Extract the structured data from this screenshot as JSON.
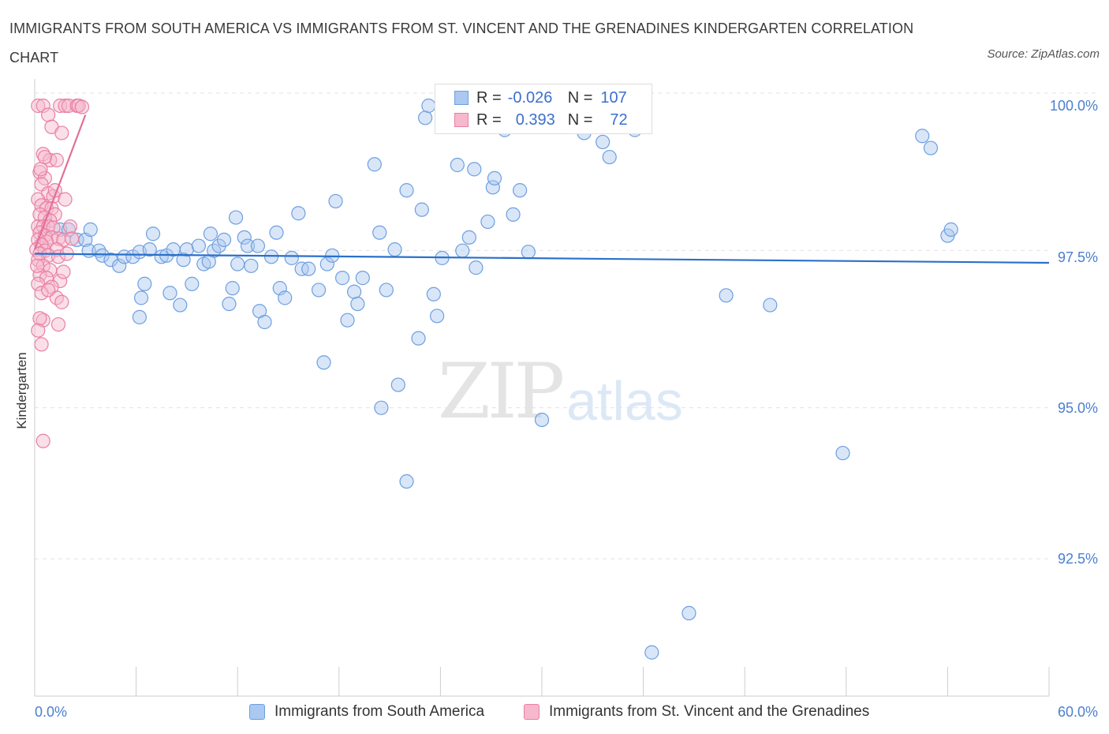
{
  "title": "IMMIGRANTS FROM SOUTH AMERICA VS IMMIGRANTS FROM ST. VINCENT AND THE GRENADINES KINDERGARTEN CORRELATION CHART",
  "source": "Source: ZipAtlas.com",
  "watermark": {
    "zip": "ZIP",
    "atlas": "atlas"
  },
  "legend_stats": {
    "r_label": "R =",
    "n_label": "N =",
    "series1": {
      "r": "-0.026",
      "n": "107"
    },
    "series2": {
      "r": "0.393",
      "n": "72"
    }
  },
  "colors": {
    "blue_fill": "#aac8f0",
    "blue_stroke": "#6e9fe0",
    "blue_line": "#2b70c9",
    "pink_fill": "#f5b8cc",
    "pink_stroke": "#ea7fa2",
    "pink_line": "#e0709a",
    "tick_text": "#4a7fd0",
    "grid": "#e2e2e2"
  },
  "chart_data": {
    "type": "scatter",
    "title": "IMMIGRANTS FROM SOUTH AMERICA VS IMMIGRANTS FROM ST. VINCENT AND THE GRENADINES KINDERGARTEN CORRELATION CHART",
    "xlabel": "",
    "ylabel": "Kindergarten",
    "xlim": [
      0,
      60
    ],
    "ylim": [
      90.2,
      100.8
    ],
    "x_tick_labels": [
      "0.0%",
      "60.0%"
    ],
    "y_ticks": [
      100.0,
      97.5,
      95.0,
      92.5
    ],
    "y_tick_labels": [
      "100.0%",
      "97.5%",
      "95.0%",
      "92.5%"
    ],
    "grid": true,
    "legend": "bottom",
    "series": [
      {
        "name": "Immigrants from South America",
        "color": "#6e9fe0",
        "trend": {
          "x": [
            0,
            60
          ],
          "y": [
            97.55,
            97.4
          ]
        },
        "points": [
          [
            1.5,
            97.95
          ],
          [
            2.0,
            97.95
          ],
          [
            2.5,
            97.78
          ],
          [
            3.0,
            97.78
          ],
          [
            3.3,
            97.95
          ],
          [
            3.2,
            97.6
          ],
          [
            3.8,
            97.6
          ],
          [
            4.0,
            97.52
          ],
          [
            4.5,
            97.45
          ],
          [
            5.0,
            97.35
          ],
          [
            5.3,
            97.5
          ],
          [
            5.8,
            97.5
          ],
          [
            6.2,
            97.58
          ],
          [
            6.5,
            97.05
          ],
          [
            6.2,
            96.5
          ],
          [
            6.3,
            96.82
          ],
          [
            7.0,
            97.88
          ],
          [
            6.8,
            97.62
          ],
          [
            7.5,
            97.5
          ],
          [
            7.8,
            97.52
          ],
          [
            8.0,
            96.9
          ],
          [
            8.2,
            97.62
          ],
          [
            8.6,
            96.7
          ],
          [
            9.0,
            97.62
          ],
          [
            9.3,
            97.05
          ],
          [
            9.7,
            97.68
          ],
          [
            10.0,
            97.38
          ],
          [
            10.4,
            97.88
          ],
          [
            10.6,
            97.6
          ],
          [
            10.9,
            97.68
          ],
          [
            11.2,
            97.78
          ],
          [
            11.5,
            96.72
          ],
          [
            11.7,
            96.98
          ],
          [
            11.9,
            98.15
          ],
          [
            12.4,
            97.82
          ],
          [
            12.6,
            97.68
          ],
          [
            12.8,
            97.35
          ],
          [
            13.2,
            97.68
          ],
          [
            13.3,
            96.6
          ],
          [
            13.6,
            96.42
          ],
          [
            14.0,
            97.5
          ],
          [
            14.3,
            97.9
          ],
          [
            14.5,
            96.98
          ],
          [
            14.8,
            96.82
          ],
          [
            15.2,
            97.48
          ],
          [
            15.6,
            98.22
          ],
          [
            15.8,
            97.3
          ],
          [
            16.2,
            97.3
          ],
          [
            16.8,
            96.95
          ],
          [
            17.1,
            95.75
          ],
          [
            17.3,
            97.38
          ],
          [
            17.6,
            97.52
          ],
          [
            17.8,
            98.42
          ],
          [
            18.2,
            97.15
          ],
          [
            18.5,
            96.45
          ],
          [
            18.9,
            96.92
          ],
          [
            19.1,
            96.72
          ],
          [
            19.4,
            97.15
          ],
          [
            20.1,
            99.03
          ],
          [
            20.5,
            95.0
          ],
          [
            20.8,
            96.95
          ],
          [
            21.3,
            97.62
          ],
          [
            21.5,
            95.38
          ],
          [
            22.0,
            93.78
          ],
          [
            22.7,
            96.15
          ],
          [
            22.9,
            98.28
          ],
          [
            23.1,
            99.8
          ],
          [
            23.3,
            100.0
          ],
          [
            23.6,
            96.88
          ],
          [
            23.8,
            96.52
          ],
          [
            24.1,
            97.48
          ],
          [
            24.5,
            100.0
          ],
          [
            25.0,
            99.02
          ],
          [
            25.3,
            97.6
          ],
          [
            25.7,
            97.82
          ],
          [
            26.0,
            98.95
          ],
          [
            26.1,
            97.32
          ],
          [
            26.8,
            98.08
          ],
          [
            27.1,
            98.65
          ],
          [
            27.2,
            98.8
          ],
          [
            27.8,
            99.6
          ],
          [
            28.1,
            99.9
          ],
          [
            28.3,
            98.2
          ],
          [
            28.7,
            98.6
          ],
          [
            29.2,
            97.58
          ],
          [
            30.0,
            94.8
          ],
          [
            31.2,
            99.85
          ],
          [
            32.5,
            99.55
          ],
          [
            33.0,
            99.8
          ],
          [
            33.6,
            99.4
          ],
          [
            34.0,
            99.15
          ],
          [
            34.8,
            100.0
          ],
          [
            35.5,
            99.6
          ],
          [
            36.5,
            90.95
          ],
          [
            38.7,
            91.6
          ],
          [
            40.9,
            96.86
          ],
          [
            43.5,
            96.7
          ],
          [
            47.8,
            94.25
          ],
          [
            54.0,
            97.85
          ],
          [
            54.2,
            97.95
          ],
          [
            52.5,
            99.5
          ],
          [
            53.0,
            99.3
          ],
          [
            12.0,
            97.38
          ],
          [
            8.8,
            97.45
          ],
          [
            22.0,
            98.6
          ],
          [
            10.3,
            97.42
          ],
          [
            20.4,
            97.9
          ]
        ]
      },
      {
        "name": "Immigrants from St. Vincent and the Grenadines",
        "color": "#ea7fa2",
        "trend": {
          "x": [
            0,
            3.0
          ],
          "y": [
            97.62,
            99.85
          ]
        },
        "points": [
          [
            0.2,
            100.0
          ],
          [
            0.5,
            100.0
          ],
          [
            0.8,
            99.85
          ],
          [
            1.5,
            100.0
          ],
          [
            1.8,
            100.0
          ],
          [
            2.0,
            100.0
          ],
          [
            2.5,
            100.0
          ],
          [
            2.6,
            100.0
          ],
          [
            2.8,
            99.98
          ],
          [
            1.0,
            99.65
          ],
          [
            1.6,
            99.55
          ],
          [
            0.5,
            99.2
          ],
          [
            0.9,
            99.1
          ],
          [
            1.3,
            99.1
          ],
          [
            0.3,
            98.9
          ],
          [
            0.6,
            98.8
          ],
          [
            0.4,
            98.7
          ],
          [
            0.8,
            98.55
          ],
          [
            1.1,
            98.5
          ],
          [
            1.8,
            98.45
          ],
          [
            0.2,
            98.45
          ],
          [
            0.4,
            98.35
          ],
          [
            0.7,
            98.3
          ],
          [
            1.0,
            98.3
          ],
          [
            1.2,
            98.2
          ],
          [
            0.3,
            98.2
          ],
          [
            0.6,
            98.15
          ],
          [
            0.9,
            98.1
          ],
          [
            0.2,
            98.0
          ],
          [
            0.5,
            98.0
          ],
          [
            0.8,
            98.0
          ],
          [
            1.1,
            97.98
          ],
          [
            0.3,
            97.9
          ],
          [
            0.6,
            97.85
          ],
          [
            1.0,
            97.82
          ],
          [
            1.4,
            97.8
          ],
          [
            0.2,
            97.78
          ],
          [
            0.7,
            97.75
          ],
          [
            1.7,
            97.78
          ],
          [
            0.4,
            97.7
          ],
          [
            0.1,
            97.62
          ],
          [
            0.6,
            97.6
          ],
          [
            1.3,
            97.62
          ],
          [
            0.3,
            97.55
          ],
          [
            0.8,
            97.52
          ],
          [
            1.4,
            97.5
          ],
          [
            0.2,
            97.45
          ],
          [
            0.5,
            97.35
          ],
          [
            0.9,
            97.28
          ],
          [
            0.3,
            97.2
          ],
          [
            0.7,
            97.15
          ],
          [
            1.5,
            97.1
          ],
          [
            0.2,
            97.05
          ],
          [
            1.0,
            97.0
          ],
          [
            0.4,
            96.9
          ],
          [
            1.3,
            96.82
          ],
          [
            1.6,
            96.75
          ],
          [
            0.5,
            96.45
          ],
          [
            0.3,
            96.48
          ],
          [
            1.4,
            96.38
          ],
          [
            0.2,
            96.28
          ],
          [
            0.4,
            96.05
          ],
          [
            0.5,
            94.45
          ],
          [
            1.2,
            98.6
          ],
          [
            2.1,
            98.0
          ],
          [
            1.9,
            97.55
          ],
          [
            0.8,
            96.95
          ],
          [
            0.15,
            97.35
          ],
          [
            0.35,
            98.95
          ],
          [
            1.7,
            97.25
          ],
          [
            2.2,
            97.8
          ],
          [
            0.6,
            99.15
          ]
        ]
      }
    ]
  },
  "legend_bottom": [
    {
      "label": "Immigrants from South America"
    },
    {
      "label": "Immigrants from St. Vincent and the Grenadines"
    }
  ]
}
